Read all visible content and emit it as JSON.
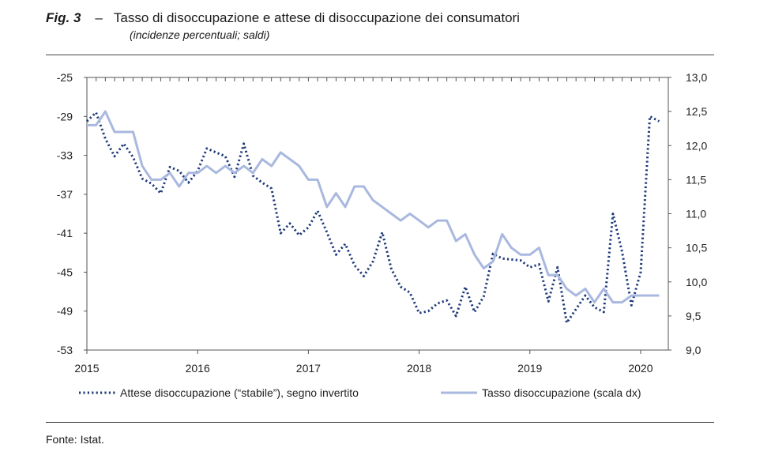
{
  "figure": {
    "label": "Fig. 3",
    "dash": "–",
    "title": "Tasso di disoccupazione e attese di disoccupazione dei consumatori",
    "subtitle": "(incidenze percentuali; saldi)",
    "source": "Fonte: Istat."
  },
  "chart_data": {
    "type": "line",
    "x_tick_labels": [
      "2015",
      "2016",
      "2017",
      "2018",
      "2019",
      "2020"
    ],
    "x_range": [
      2015.0,
      2020.25
    ],
    "y_left": {
      "ticks": [
        -25,
        -29,
        -33,
        -37,
        -41,
        -45,
        -49,
        -53
      ],
      "range": [
        -53,
        -25
      ]
    },
    "y_right": {
      "ticks": [
        "13,0",
        "12,5",
        "12,0",
        "11,5",
        "11,0",
        "10,5",
        "10,0",
        "9,5",
        "9,0"
      ],
      "range": [
        9.0,
        13.0
      ]
    },
    "grid": false,
    "legend_position": "bottom",
    "series": [
      {
        "name": "Attese disoccupazione (“stabile”), segno invertito",
        "axis": "left",
        "style": "dotted",
        "color": "#1f3a7a",
        "x": [
          2015.0,
          2015.083,
          2015.167,
          2015.25,
          2015.333,
          2015.417,
          2015.5,
          2015.583,
          2015.667,
          2015.75,
          2015.833,
          2015.917,
          2016.0,
          2016.083,
          2016.167,
          2016.25,
          2016.333,
          2016.417,
          2016.5,
          2016.583,
          2016.667,
          2016.75,
          2016.833,
          2016.917,
          2017.0,
          2017.083,
          2017.167,
          2017.25,
          2017.333,
          2017.417,
          2017.5,
          2017.583,
          2017.667,
          2017.75,
          2017.833,
          2017.917,
          2018.0,
          2018.083,
          2018.167,
          2018.25,
          2018.333,
          2018.417,
          2018.5,
          2018.583,
          2018.667,
          2018.75,
          2018.833,
          2018.917,
          2019.0,
          2019.083,
          2019.167,
          2019.25,
          2019.333,
          2019.417,
          2019.5,
          2019.583,
          2019.667,
          2019.75,
          2019.833,
          2019.917,
          2020.0,
          2020.083,
          2020.167
        ],
        "values": [
          -29.5,
          -28.6,
          -31.3,
          -33.1,
          -31.8,
          -33.2,
          -35.4,
          -35.9,
          -36.9,
          -34.2,
          -34.6,
          -35.8,
          -34.6,
          -32.3,
          -32.7,
          -33.1,
          -35.2,
          -31.8,
          -35.1,
          -35.8,
          -36.4,
          -41.0,
          -40.0,
          -41.2,
          -40.4,
          -38.7,
          -40.9,
          -43.2,
          -42.1,
          -44.3,
          -45.4,
          -43.9,
          -40.9,
          -44.7,
          -46.5,
          -47.1,
          -49.2,
          -49.0,
          -48.2,
          -47.9,
          -49.5,
          -46.5,
          -49.1,
          -47.5,
          -43.1,
          -43.6,
          -43.7,
          -43.8,
          -44.5,
          -44.2,
          -48.0,
          -44.5,
          -50.2,
          -48.8,
          -47.4,
          -48.6,
          -49.1,
          -39.0,
          -42.9,
          -48.4,
          -45.0,
          -29.0,
          -29.5
        ]
      },
      {
        "name": "Tasso disoccupazione (scala dx)",
        "axis": "right",
        "style": "solid",
        "color": "#a9b8de",
        "x": [
          2015.0,
          2015.083,
          2015.167,
          2015.25,
          2015.333,
          2015.417,
          2015.5,
          2015.583,
          2015.667,
          2015.75,
          2015.833,
          2015.917,
          2016.0,
          2016.083,
          2016.167,
          2016.25,
          2016.333,
          2016.417,
          2016.5,
          2016.583,
          2016.667,
          2016.75,
          2016.833,
          2016.917,
          2017.0,
          2017.083,
          2017.167,
          2017.25,
          2017.333,
          2017.417,
          2017.5,
          2017.583,
          2017.667,
          2017.75,
          2017.833,
          2017.917,
          2018.0,
          2018.083,
          2018.167,
          2018.25,
          2018.333,
          2018.417,
          2018.5,
          2018.583,
          2018.667,
          2018.75,
          2018.833,
          2018.917,
          2019.0,
          2019.083,
          2019.167,
          2019.25,
          2019.333,
          2019.417,
          2019.5,
          2019.583,
          2019.667,
          2019.75,
          2019.833,
          2019.917,
          2020.0,
          2020.083,
          2020.167
        ],
        "values": [
          12.3,
          12.3,
          12.5,
          12.2,
          12.2,
          12.2,
          11.7,
          11.5,
          11.5,
          11.6,
          11.4,
          11.6,
          11.6,
          11.7,
          11.6,
          11.7,
          11.6,
          11.7,
          11.6,
          11.8,
          11.7,
          11.9,
          11.8,
          11.7,
          11.5,
          11.5,
          11.1,
          11.3,
          11.1,
          11.4,
          11.4,
          11.2,
          11.1,
          11.0,
          10.9,
          11.0,
          10.9,
          10.8,
          10.9,
          10.9,
          10.6,
          10.7,
          10.4,
          10.2,
          10.3,
          10.7,
          10.5,
          10.4,
          10.4,
          10.5,
          10.1,
          10.1,
          9.9,
          9.8,
          9.9,
          9.7,
          9.9,
          9.7,
          9.7,
          9.8,
          9.8,
          9.8,
          9.8
        ]
      }
    ]
  }
}
